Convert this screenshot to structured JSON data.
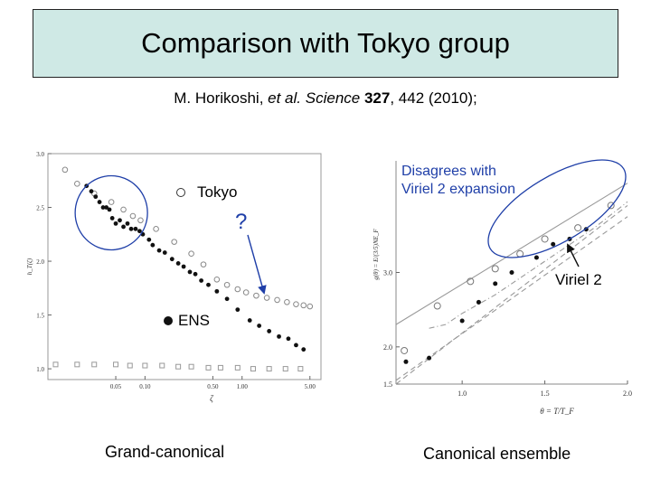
{
  "header": {
    "title": "Comparison with Tokyo group",
    "citation": {
      "authors": "M. Horikoshi,",
      "etal": "et al.",
      "journal": "Science",
      "volume": "327",
      "rest": ", 442 (2010);"
    }
  },
  "colors": {
    "title_background": "#cfe9e5",
    "highlight_ellipse": "#1f3fa8",
    "annotation_arrow": "#1f3fa8"
  },
  "left_panel": {
    "caption": "Grand-canonical",
    "legend_tokyo": "Tokyo",
    "legend_ens": "ENS",
    "question_mark": "?",
    "chart_data": {
      "type": "scatter",
      "xscale": "log",
      "xlabel": "ζ",
      "ylabel": "h_T(ζ)",
      "xlim": [
        0.01,
        6.5
      ],
      "ylim": [
        0.9,
        3.0
      ],
      "xticks": [
        "0.05",
        "0.10",
        "0.50",
        "1.00",
        "5.00"
      ],
      "xtick_values": [
        0.05,
        0.1,
        0.5,
        1.0,
        5.0
      ],
      "yticks": [
        "1.0",
        "1.5",
        "2.0",
        "2.5",
        "3.0"
      ],
      "ytick_values": [
        1.0,
        1.5,
        2.0,
        2.5,
        3.0
      ],
      "series": [
        {
          "name": "Tokyo",
          "marker": "open-circle",
          "x": [
            0.015,
            0.02,
            0.03,
            0.045,
            0.06,
            0.075,
            0.09,
            0.13,
            0.2,
            0.3,
            0.4,
            0.55,
            0.7,
            0.9,
            1.1,
            1.4,
            1.8,
            2.3,
            2.9,
            3.6,
            4.3,
            5.0
          ],
          "y": [
            2.85,
            2.72,
            2.63,
            2.55,
            2.48,
            2.42,
            2.38,
            2.3,
            2.18,
            2.07,
            1.97,
            1.83,
            1.78,
            1.74,
            1.71,
            1.68,
            1.66,
            1.64,
            1.62,
            1.6,
            1.59,
            1.58
          ]
        },
        {
          "name": "ENS",
          "marker": "filled-circle",
          "x": [
            0.025,
            0.028,
            0.031,
            0.034,
            0.037,
            0.04,
            0.043,
            0.046,
            0.05,
            0.055,
            0.06,
            0.066,
            0.072,
            0.08,
            0.088,
            0.095,
            0.11,
            0.12,
            0.14,
            0.16,
            0.19,
            0.22,
            0.25,
            0.29,
            0.33,
            0.38,
            0.45,
            0.55,
            0.7,
            0.9,
            1.2,
            1.5,
            1.9,
            2.4,
            3.0,
            3.6,
            4.3
          ],
          "y": [
            2.7,
            2.65,
            2.6,
            2.55,
            2.5,
            2.5,
            2.48,
            2.4,
            2.35,
            2.38,
            2.32,
            2.35,
            2.3,
            2.3,
            2.28,
            2.25,
            2.2,
            2.15,
            2.1,
            2.08,
            2.02,
            1.98,
            1.95,
            1.9,
            1.88,
            1.82,
            1.78,
            1.72,
            1.65,
            1.55,
            1.45,
            1.4,
            1.35,
            1.3,
            1.28,
            1.22,
            1.18
          ]
        },
        {
          "name": "",
          "marker": "open-square",
          "x": [
            0.012,
            0.02,
            0.03,
            0.05,
            0.07,
            0.1,
            0.15,
            0.22,
            0.3,
            0.45,
            0.6,
            0.9,
            1.3,
            1.9,
            2.8,
            4.0
          ],
          "y": [
            1.04,
            1.04,
            1.04,
            1.04,
            1.03,
            1.03,
            1.03,
            1.02,
            1.02,
            1.01,
            1.01,
            1.01,
            1.0,
            1.0,
            1.0,
            1.0
          ]
        }
      ]
    }
  },
  "right_panel": {
    "caption": "Canonical ensemble",
    "annotation_line1": "Disagrees with",
    "annotation_line2": "Viriel 2 expansion",
    "viriel_label": "Viriel 2",
    "chart_data": {
      "type": "scatter",
      "xlabel": "θ = T/T_F",
      "ylabel": "g(θ) = E/(3/5)NE_F",
      "xlim": [
        0.6,
        2.0
      ],
      "ylim": [
        1.5,
        4.5
      ],
      "xticks": [
        "1.0",
        "1.5",
        "2.0"
      ],
      "xtick_values": [
        1.0,
        1.5,
        2.0
      ],
      "yticks": [
        "1.5",
        "2.0",
        "3.0"
      ],
      "ytick_values": [
        1.5,
        2.0,
        3.0
      ],
      "series": [
        {
          "name": "",
          "marker": "open-circle",
          "x": [
            0.65,
            0.85,
            1.05,
            1.2,
            1.35,
            1.5,
            1.7,
            1.9
          ],
          "y": [
            1.95,
            2.55,
            2.88,
            3.05,
            3.25,
            3.45,
            3.6,
            3.9
          ]
        },
        {
          "name": "",
          "marker": "filled-circle",
          "x": [
            0.66,
            0.8,
            1.0,
            1.1,
            1.2,
            1.3,
            1.45,
            1.55,
            1.65,
            1.75
          ],
          "y": [
            1.8,
            1.85,
            2.35,
            2.6,
            2.85,
            3.0,
            3.2,
            3.38,
            3.45,
            3.58
          ]
        }
      ],
      "curves": [
        {
          "name": "",
          "style": "solid",
          "x": [
            0.6,
            2.0
          ],
          "y": [
            2.3,
            4.2
          ]
        },
        {
          "name": "",
          "style": "dash-dot",
          "x": [
            0.8,
            0.9,
            1.0,
            1.2,
            1.4,
            1.6,
            1.8,
            2.0
          ],
          "y": [
            2.25,
            2.3,
            2.45,
            2.7,
            3.0,
            3.3,
            3.6,
            3.95
          ]
        },
        {
          "name": "",
          "style": "dashed",
          "x": [
            0.6,
            2.0
          ],
          "y": [
            1.5,
            3.9
          ]
        },
        {
          "name": "",
          "style": "dashed",
          "x": [
            0.6,
            2.0
          ],
          "y": [
            1.55,
            3.75
          ]
        }
      ]
    }
  }
}
